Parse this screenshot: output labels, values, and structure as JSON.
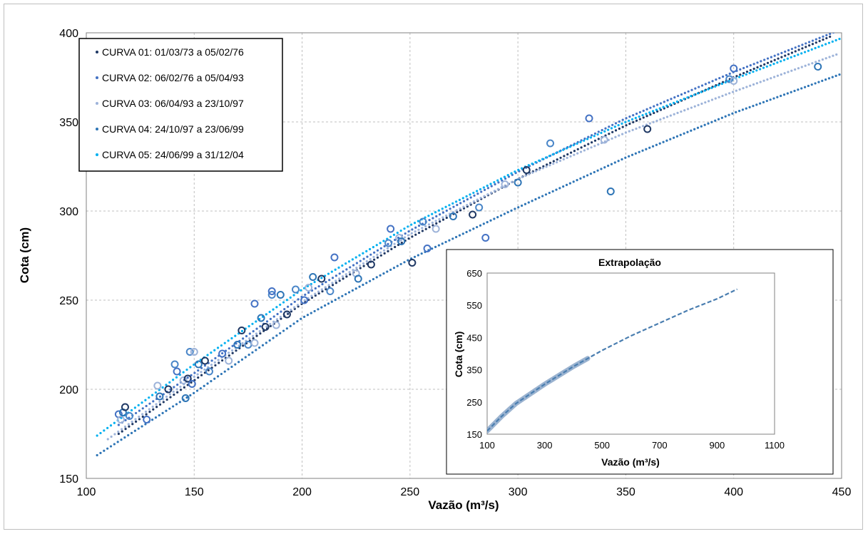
{
  "chart_data": [
    {
      "type": "scatter",
      "title": "",
      "xlabel": "Vazão (m³/s)",
      "ylabel": "Cota (cm)",
      "xlim": [
        100,
        450
      ],
      "ylim": [
        150,
        400
      ],
      "xticks": [
        100,
        150,
        200,
        250,
        300,
        350,
        400,
        450
      ],
      "yticks": [
        150,
        200,
        250,
        300,
        350,
        400
      ],
      "grid": true,
      "legend_position": "top-left",
      "series": [
        {
          "name": "CURVA 01: 01/03/73 a 05/02/76",
          "color": "#1f3864",
          "x": [
            115,
            150,
            200,
            250,
            300,
            350,
            400,
            445
          ],
          "y": [
            175,
            205,
            248,
            285,
            318,
            348,
            375,
            398
          ]
        },
        {
          "name": "CURVA 02: 06/02/76 a 05/04/93",
          "color": "#4472c4",
          "x": [
            115,
            150,
            200,
            250,
            300,
            350,
            400,
            450
          ],
          "y": [
            180,
            209,
            252,
            289,
            322,
            352,
            378,
            402
          ]
        },
        {
          "name": "CURVA 03: 06/04/93 a 23/10/97",
          "color": "#9db3d9",
          "x": [
            110,
            150,
            200,
            250,
            300,
            350,
            400,
            448
          ],
          "y": [
            172,
            207,
            249,
            287,
            318,
            344,
            367,
            388
          ]
        },
        {
          "name": "CURVA 04: 24/10/97 a 23/06/99",
          "color": "#2e75b6",
          "x": [
            105,
            150,
            200,
            250,
            300,
            350,
            400,
            450
          ],
          "y": [
            163,
            198,
            240,
            273,
            302,
            330,
            355,
            377
          ]
        },
        {
          "name": "CURVA 05: 24/06/99 a 31/12/04",
          "color": "#00b0f0",
          "x": [
            105,
            150,
            200,
            250,
            300,
            350,
            400,
            450
          ],
          "y": [
            174,
            214,
            256,
            292,
            323,
            350,
            374,
            397
          ]
        }
      ],
      "observations": {
        "x": [
          115,
          116,
          117,
          118,
          120,
          128,
          133,
          134,
          138,
          141,
          142,
          145,
          146,
          147,
          148,
          149,
          150,
          152,
          155,
          157,
          163,
          166,
          170,
          172,
          175,
          178,
          178,
          181,
          183,
          186,
          186,
          188,
          190,
          193,
          197,
          201,
          203,
          205,
          209,
          213,
          215,
          225,
          226,
          232,
          240,
          241,
          245,
          246,
          251,
          256,
          258,
          262,
          270,
          279,
          282,
          285,
          294,
          300,
          304,
          315,
          333,
          340,
          343,
          360,
          398,
          400,
          400,
          439
        ],
        "y": [
          186,
          183,
          187,
          190,
          185,
          183,
          202,
          196,
          200,
          214,
          210,
          205,
          195,
          206,
          221,
          203,
          221,
          214,
          216,
          210,
          220,
          216,
          225,
          233,
          225,
          248,
          226,
          240,
          235,
          253,
          255,
          236,
          253,
          242,
          256,
          250,
          257,
          263,
          262,
          255,
          274,
          265,
          262,
          270,
          282,
          290,
          285,
          283,
          271,
          294,
          279,
          290,
          297,
          298,
          302,
          285,
          315,
          316,
          323,
          338,
          352,
          340,
          311,
          346,
          374,
          380,
          373,
          381
        ]
      }
    },
    {
      "type": "scatter",
      "title": "Extrapolação",
      "xlabel": "Vazão (m³/s)",
      "ylabel": "Cota (cm)",
      "xlim": [
        100,
        1100
      ],
      "ylim": [
        150,
        650
      ],
      "xticks": [
        100,
        300,
        500,
        700,
        900,
        1100
      ],
      "yticks": [
        150,
        250,
        350,
        450,
        550,
        650
      ],
      "grid": false,
      "curve": {
        "color": "#4a7eb0",
        "x": [
          100,
          150,
          200,
          300,
          400,
          500,
          600,
          700,
          800,
          900,
          970
        ],
        "y": [
          160,
          205,
          245,
          305,
          360,
          410,
          455,
          495,
          535,
          570,
          600
        ]
      }
    }
  ]
}
